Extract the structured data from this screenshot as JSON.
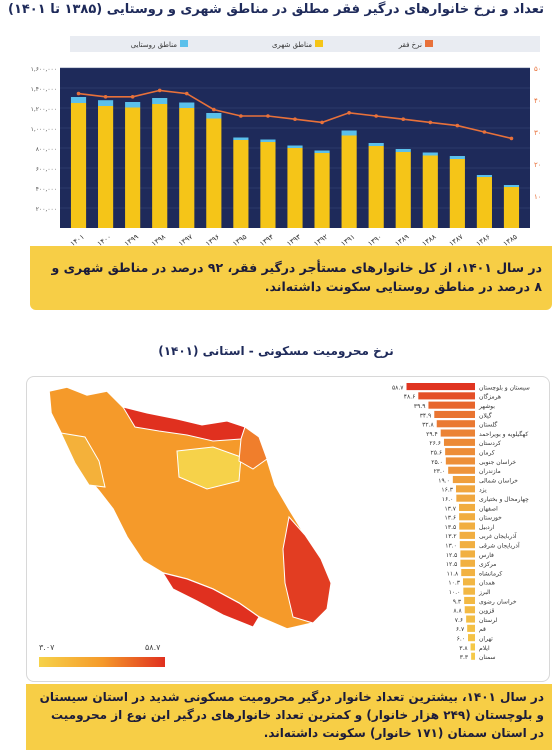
{
  "header": {
    "title1": "تعداد و نرخ خانوارهای درگیر فقر مطلق در مناطق شهری و روستایی (۱۳۸۵ تا ۱۴۰۱)",
    "title2": "نرخ محرومیت مسکونی - استانی (۱۴۰۱)"
  },
  "notes": {
    "note1": "در سال ۱۴۰۱، از کل خانوارهای مستأجر درگیر فقر، ۹۲ درصد در مناطق شهری و ۸ درصد در مناطق روستایی سکونت داشته‌اند.",
    "note2": "در سال ۱۴۰۱، بیشترین تعداد خانوار درگیر محرومیت مسکونی شدید در استان سیستان و بلوچستان (۲۴۹ هزار خانوار) و کمترین تعداد خانوارهای درگیر این نوع از محرومیت در استان سمنان (۱۷۱ خانوار) سکونت داشته‌اند."
  },
  "colors": {
    "urban": "#f5c518",
    "rural": "#5bc0eb",
    "rate_line": "#e8713a",
    "plot_bg": "#1e2a5a",
    "gauge_low": "#f6d24a",
    "gauge_high": "#e0301f"
  },
  "chart_data": [
    {
      "type": "bar",
      "stacked": true,
      "categories": [
        "۱۴۰۱",
        "۱۴۰۰",
        "۱۳۹۹",
        "۱۳۹۸",
        "۱۳۹۷",
        "۱۳۹۶",
        "۱۳۹۵",
        "۱۳۹۴",
        "۱۳۹۳",
        "۱۳۹۲",
        "۱۳۹۱",
        "۱۳۹۰",
        "۱۳۸۹",
        "۱۳۸۸",
        "۱۳۸۷",
        "۱۳۸۶",
        "۱۳۸۵"
      ],
      "series": [
        {
          "name": "مناطق شهری",
          "values": [
            1250000,
            1220000,
            1205000,
            1240000,
            1200000,
            1095000,
            880000,
            860000,
            800000,
            750000,
            925000,
            820000,
            760000,
            725000,
            690000,
            510000,
            410000
          ]
        },
        {
          "name": "مناطق روستایی",
          "values": [
            60000,
            58000,
            55000,
            60000,
            55000,
            55000,
            25000,
            25000,
            25000,
            25000,
            50000,
            30000,
            30000,
            30000,
            30000,
            20000,
            20000
          ]
        },
        {
          "name": "نرخ فقر",
          "axis": "right",
          "values": [
            42,
            41,
            41,
            43,
            42,
            37,
            35,
            35,
            34,
            33,
            36,
            35,
            34,
            33,
            32,
            30,
            28
          ]
        }
      ],
      "y_ticks": [
        "۲۰۰,۰۰۰",
        "۴۰۰,۰۰۰",
        "۶۰۰,۰۰۰",
        "۸۰۰,۰۰۰",
        "۱,۰۰۰,۰۰۰",
        "۱,۲۰۰,۰۰۰",
        "۱,۴۰۰,۰۰۰",
        "۱,۶۰۰,۰۰۰"
      ],
      "ylim": [
        0,
        1600000
      ],
      "y2_ticks": [
        "۱۰",
        "۲۰",
        "۳۰",
        "۴۰",
        "۵۰"
      ],
      "y2lim": [
        0,
        50
      ],
      "legend": [
        "مناطق روستایی",
        "مناطق شهری",
        "نرخ فقر"
      ],
      "legend_position": "top"
    },
    {
      "type": "bar",
      "orientation": "horizontal",
      "categories": [
        "سیستان و بلوچستان",
        "هرمزگان",
        "بوشهر",
        "گیلان",
        "گلستان",
        "کهگیلویه و بویراحمد",
        "کردستان",
        "کرمان",
        "خراسان جنوبی",
        "مازندران",
        "خراسان شمالی",
        "یزد",
        "چهارمحال و بختیاری",
        "اصفهان",
        "خوزستان",
        "اردبیل",
        "آذربایجان غربی",
        "آذربایجان شرقی",
        "فارس",
        "مرکزی",
        "کرمانشاه",
        "همدان",
        "البرز",
        "خراسان رضوی",
        "قزوین",
        "لرستان",
        "قم",
        "تهران",
        "ایلام",
        "سمنان"
      ],
      "values": [
        58.7,
        48.6,
        39.9,
        34.9,
        32.8,
        29.4,
        26.6,
        25.6,
        25.0,
        23.0,
        19.0,
        16.3,
        16.0,
        13.7,
        13.6,
        13.5,
        13.2,
        13.0,
        12.5,
        12.5,
        11.8,
        10.3,
        10.0,
        9.3,
        8.8,
        7.6,
        6.7,
        6.0,
        3.8,
        3.3
      ],
      "value_labels": [
        "۵۸.۷",
        "۴۸.۶",
        "۳۹.۹",
        "۳۴.۹",
        "۳۲.۸",
        "۲۹.۴",
        "۲۶.۶",
        "۲۵.۶",
        "۲۵.۰",
        "۲۳.۰",
        "۱۹.۰",
        "۱۶.۳",
        "۱۶.۰",
        "۱۳.۷",
        "۱۳.۶",
        "۱۳.۵",
        "۱۳.۲",
        "۱۳.۰",
        "۱۲.۵",
        "۱۲.۵",
        "۱۱.۸",
        "۱۰.۳",
        "۱۰.۰",
        "۹.۳",
        "۸.۸",
        "۷.۶",
        "۶.۷",
        "۶.۰",
        "۳.۸",
        "۳.۳"
      ],
      "range_labels": {
        "low": "۳.۰۷",
        "high": "۵۸.۷"
      },
      "xlim": [
        0,
        60
      ]
    }
  ]
}
